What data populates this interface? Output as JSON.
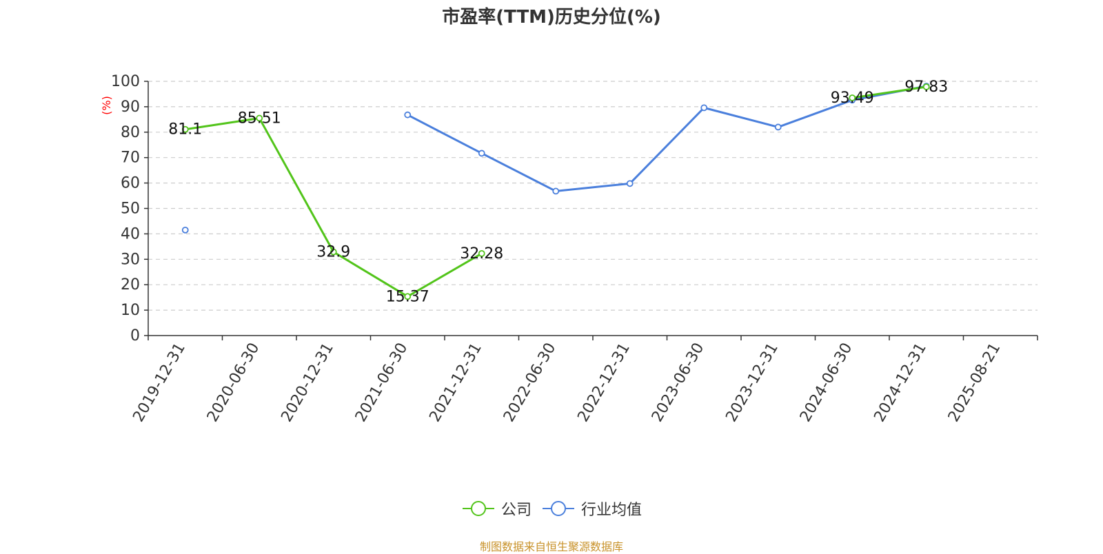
{
  "chart_data": {
    "type": "line",
    "title": "市盈率(TTM)历史分位(%)",
    "ylabel": "(%)",
    "xlabel": "",
    "ylim": [
      0,
      100
    ],
    "yticks": [
      0,
      10,
      20,
      30,
      40,
      50,
      60,
      70,
      80,
      90,
      100
    ],
    "categories": [
      "2019-12-31",
      "2020-06-30",
      "2020-12-31",
      "2021-06-30",
      "2021-12-31",
      "2022-06-30",
      "2022-12-31",
      "2023-06-30",
      "2023-12-31",
      "2024-06-30",
      "2024-12-31",
      "2025-08-21"
    ],
    "grid": true,
    "legend_position": "bottom",
    "series": [
      {
        "name": "公司",
        "color": "#52c41a",
        "values": [
          81.1,
          85.51,
          32.9,
          15.37,
          32.28,
          null,
          null,
          null,
          null,
          93.49,
          97.83,
          null
        ],
        "labels": [
          "81.1",
          "85.51",
          "32.9",
          "15.37",
          "32.28",
          null,
          null,
          null,
          null,
          "93.49",
          "97.83",
          null
        ]
      },
      {
        "name": "行业均值",
        "color": "#4a7fdc",
        "values": [
          41.5,
          null,
          null,
          86.8,
          71.7,
          56.8,
          59.8,
          89.6,
          82.0,
          92.6,
          98.1,
          null
        ]
      }
    ]
  },
  "source_note": "制图数据来自恒生聚源数据库",
  "source_color": "#c8922a",
  "ylabel_color": "#ff0000"
}
